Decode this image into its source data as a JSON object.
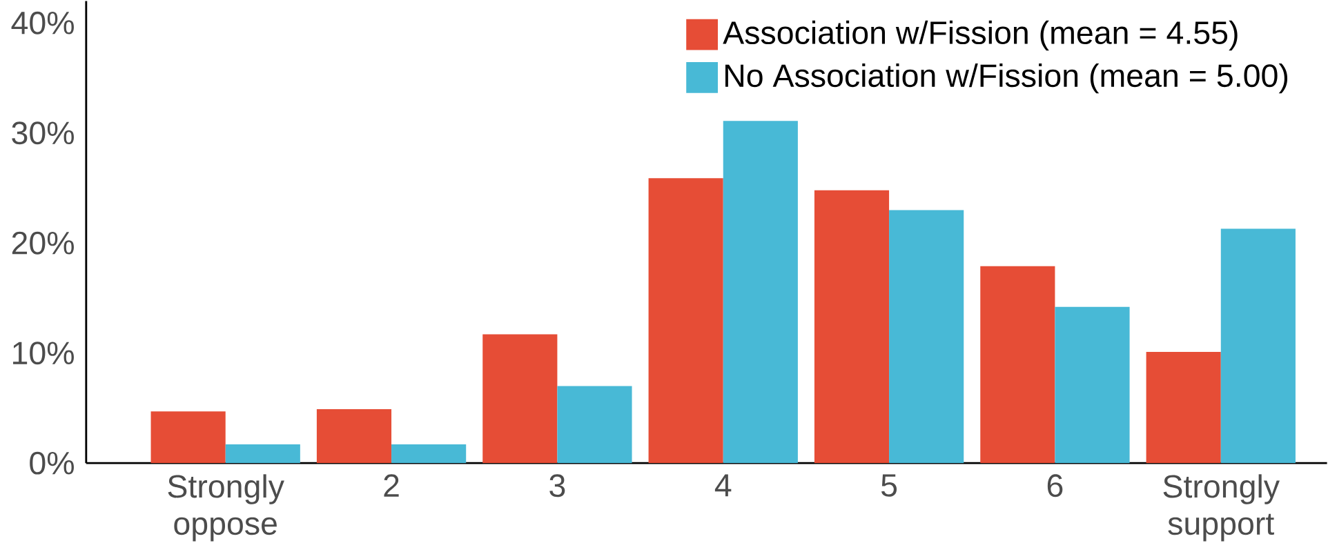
{
  "chart_data": {
    "type": "bar",
    "categories": [
      "Strongly oppose",
      "2",
      "3",
      "4",
      "5",
      "6",
      "Strongly support"
    ],
    "series": [
      {
        "name": "Association w/Fission (mean = 4.55)",
        "color": "#e64d36",
        "values": [
          4.7,
          4.9,
          11.7,
          25.9,
          24.8,
          17.9,
          10.1
        ]
      },
      {
        "name": "No Association w/Fission (mean = 5.00)",
        "color": "#48b9d6",
        "values": [
          1.7,
          1.7,
          7.0,
          31.1,
          23.0,
          14.2,
          21.3
        ]
      }
    ],
    "ylim": [
      0,
      42
    ],
    "yticks": [
      {
        "value": 0,
        "label": "0%"
      },
      {
        "value": 10,
        "label": "10%"
      },
      {
        "value": 20,
        "label": "20%"
      },
      {
        "value": 30,
        "label": "30%"
      },
      {
        "value": 40,
        "label": "40%"
      }
    ],
    "grid": false,
    "legend": "top right"
  }
}
